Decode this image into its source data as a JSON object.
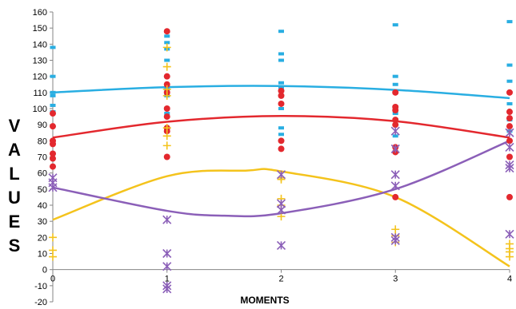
{
  "chart_data": {
    "type": "scatter",
    "title": "",
    "xlabel": "MOMENTS",
    "ylabel": "VALUES",
    "xlim": [
      0,
      4
    ],
    "ylim": [
      -20,
      160
    ],
    "x_ticks": [
      "0",
      "1",
      "2",
      "3",
      "4"
    ],
    "y_ticks": [
      "-20",
      "-10",
      "0",
      "10",
      "20",
      "30",
      "40",
      "50",
      "60",
      "70",
      "80",
      "90",
      "100",
      "110",
      "120",
      "130",
      "140",
      "150",
      "160"
    ],
    "grid": false,
    "legend": "none",
    "series": [
      {
        "marker": "dash",
        "color": "#29aee2",
        "points": [
          [
            0,
            138
          ],
          [
            0,
            120
          ],
          [
            0,
            110
          ],
          [
            0,
            108
          ],
          [
            0,
            102
          ],
          [
            0,
            98
          ],
          [
            1,
            148
          ],
          [
            1,
            145
          ],
          [
            1,
            141
          ],
          [
            1,
            137
          ],
          [
            1,
            130
          ],
          [
            1,
            120
          ],
          [
            1,
            112
          ],
          [
            1,
            108
          ],
          [
            1,
            97
          ],
          [
            1,
            88
          ],
          [
            1,
            86
          ],
          [
            2,
            148
          ],
          [
            2,
            134
          ],
          [
            2,
            130
          ],
          [
            2,
            116
          ],
          [
            2,
            113
          ],
          [
            2,
            108
          ],
          [
            2,
            100
          ],
          [
            2,
            88
          ],
          [
            2,
            84
          ],
          [
            3,
            152
          ],
          [
            3,
            120
          ],
          [
            3,
            115
          ],
          [
            3,
            111
          ],
          [
            3,
            101
          ],
          [
            3,
            97
          ],
          [
            3,
            93
          ],
          [
            3,
            83
          ],
          [
            4,
            154
          ],
          [
            4,
            127
          ],
          [
            4,
            117
          ],
          [
            4,
            103
          ],
          [
            4,
            98
          ],
          [
            4,
            93
          ],
          [
            4,
            86
          ]
        ],
        "trend": [
          [
            0,
            110
          ],
          [
            1,
            113.3
          ],
          [
            2,
            114
          ],
          [
            3,
            111.6
          ],
          [
            4,
            106.5
          ]
        ]
      },
      {
        "marker": "circle",
        "color": "#e3282e",
        "points": [
          [
            0,
            97
          ],
          [
            0,
            89
          ],
          [
            0,
            80
          ],
          [
            0,
            78
          ],
          [
            0,
            72
          ],
          [
            0,
            69
          ],
          [
            0,
            64
          ],
          [
            1,
            148
          ],
          [
            1,
            120
          ],
          [
            1,
            115
          ],
          [
            1,
            110
          ],
          [
            1,
            100
          ],
          [
            1,
            95
          ],
          [
            1,
            88
          ],
          [
            1,
            86
          ],
          [
            1,
            70
          ],
          [
            2,
            111
          ],
          [
            2,
            108
          ],
          [
            2,
            103
          ],
          [
            2,
            80
          ],
          [
            2,
            75
          ],
          [
            3,
            110
          ],
          [
            3,
            101
          ],
          [
            3,
            99
          ],
          [
            3,
            93
          ],
          [
            3,
            90
          ],
          [
            3,
            76
          ],
          [
            3,
            73
          ],
          [
            3,
            45
          ],
          [
            4,
            110
          ],
          [
            4,
            98
          ],
          [
            4,
            94
          ],
          [
            4,
            89
          ],
          [
            4,
            80
          ],
          [
            4,
            70
          ],
          [
            4,
            45
          ]
        ],
        "trend": [
          [
            0,
            82
          ],
          [
            1,
            91.8
          ],
          [
            2,
            95.4
          ],
          [
            3,
            92.2
          ],
          [
            4,
            82
          ]
        ]
      },
      {
        "marker": "plus",
        "color": "#f4c31c",
        "points": [
          [
            0,
            20
          ],
          [
            0,
            12
          ],
          [
            0,
            8
          ],
          [
            1,
            138
          ],
          [
            1,
            126
          ],
          [
            1,
            112
          ],
          [
            1,
            108
          ],
          [
            1,
            88
          ],
          [
            1,
            83
          ],
          [
            1,
            77
          ],
          [
            2,
            57
          ],
          [
            2,
            56
          ],
          [
            2,
            44
          ],
          [
            2,
            40
          ],
          [
            2,
            33
          ],
          [
            3,
            25
          ],
          [
            3,
            21
          ],
          [
            3,
            17
          ],
          [
            4,
            16
          ],
          [
            4,
            13
          ],
          [
            4,
            11
          ],
          [
            4,
            8
          ]
        ],
        "trend": [
          [
            0,
            31
          ],
          [
            1,
            58
          ],
          [
            1.7,
            61.5
          ],
          [
            2,
            61
          ],
          [
            3,
            45
          ],
          [
            4,
            2
          ]
        ]
      },
      {
        "marker": "asterisk",
        "color": "#8b5fb8",
        "points": [
          [
            0,
            57
          ],
          [
            0,
            54
          ],
          [
            0,
            51
          ],
          [
            1,
            31
          ],
          [
            1,
            10
          ],
          [
            1,
            2
          ],
          [
            1,
            -10
          ],
          [
            1,
            -12
          ],
          [
            2,
            59
          ],
          [
            2,
            41
          ],
          [
            2,
            37
          ],
          [
            2,
            15
          ],
          [
            3,
            86
          ],
          [
            3,
            75
          ],
          [
            3,
            59
          ],
          [
            3,
            52
          ],
          [
            3,
            20
          ],
          [
            3,
            18
          ],
          [
            4,
            85
          ],
          [
            4,
            76
          ],
          [
            4,
            65
          ],
          [
            4,
            63
          ],
          [
            4,
            22
          ]
        ],
        "trend": [
          [
            0,
            51
          ],
          [
            1,
            36.5
          ],
          [
            1.5,
            33.5
          ],
          [
            2,
            35
          ],
          [
            3,
            50
          ],
          [
            4,
            80
          ]
        ]
      }
    ]
  }
}
